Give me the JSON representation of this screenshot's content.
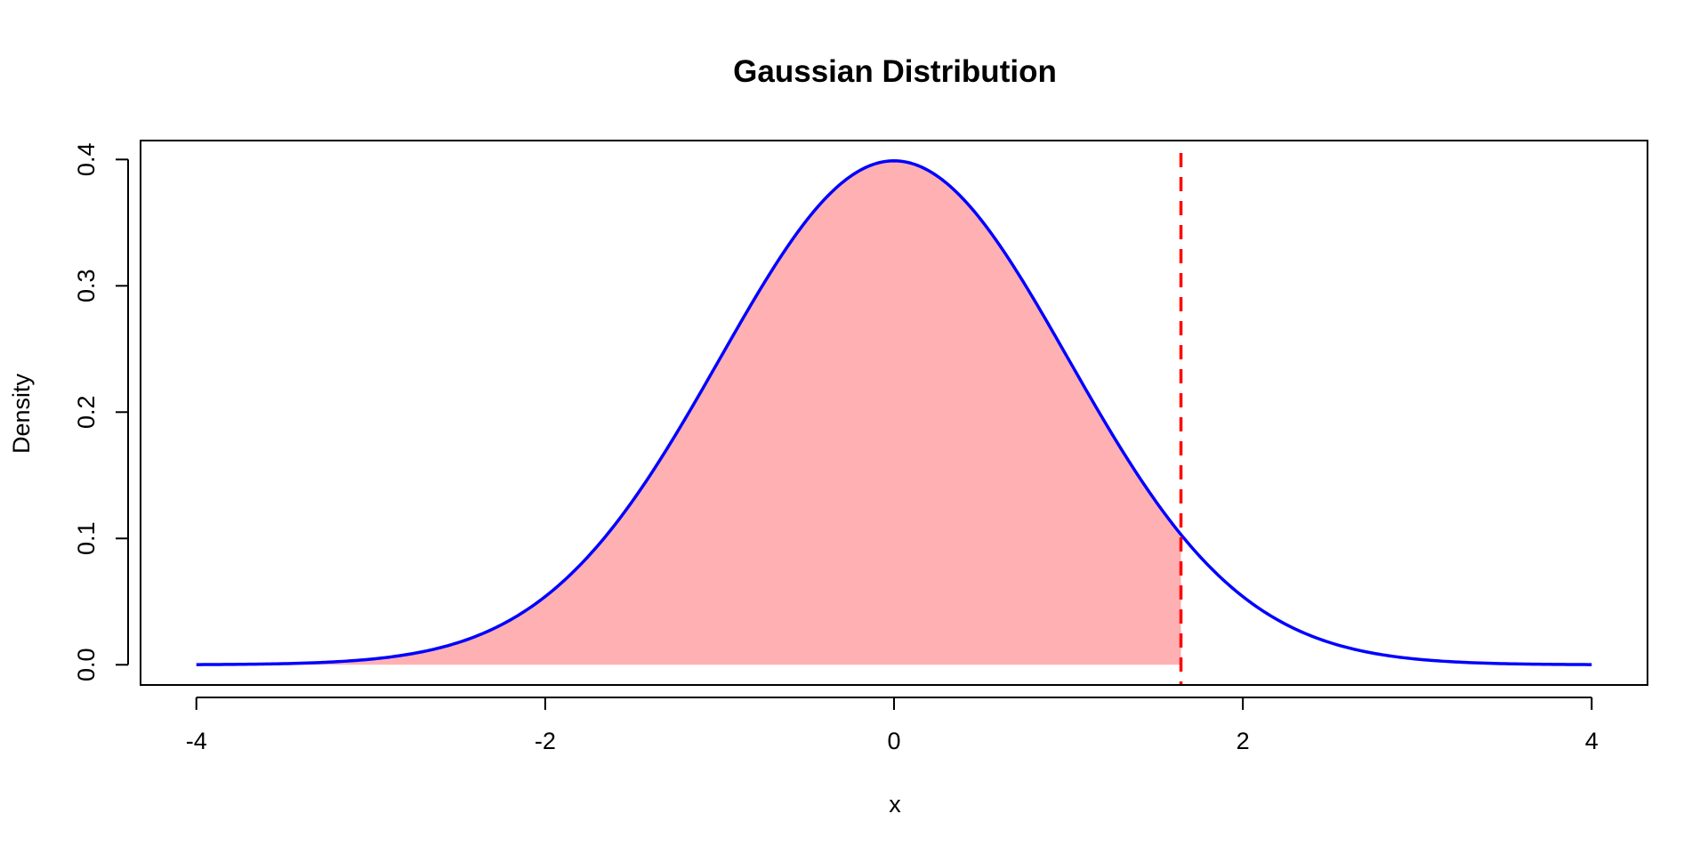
{
  "chart_data": {
    "type": "area",
    "title": "Gaussian Distribution",
    "xlabel": "x",
    "ylabel": "Density",
    "xlim": [
      -4.32,
      4.32
    ],
    "ylim": [
      -0.016,
      0.415
    ],
    "x_ticks": [
      -4,
      -2,
      0,
      2,
      4
    ],
    "x_tick_labels": [
      "-4",
      "-2",
      "0",
      "2",
      "4"
    ],
    "y_ticks": [
      0.0,
      0.1,
      0.2,
      0.3,
      0.4
    ],
    "y_tick_labels": [
      "0.0",
      "0.1",
      "0.2",
      "0.3",
      "0.4"
    ],
    "grid": false,
    "curve": {
      "distribution": "normal",
      "mean": 0,
      "sd": 1,
      "x_range": [
        -4,
        4
      ],
      "color": "#0000ff"
    },
    "shaded_region": {
      "x_from": -4,
      "x_to": 1.645,
      "color": "#ffb0b3"
    },
    "vline": {
      "x": 1.645,
      "style": "dashed",
      "color": "#ff0000"
    }
  }
}
